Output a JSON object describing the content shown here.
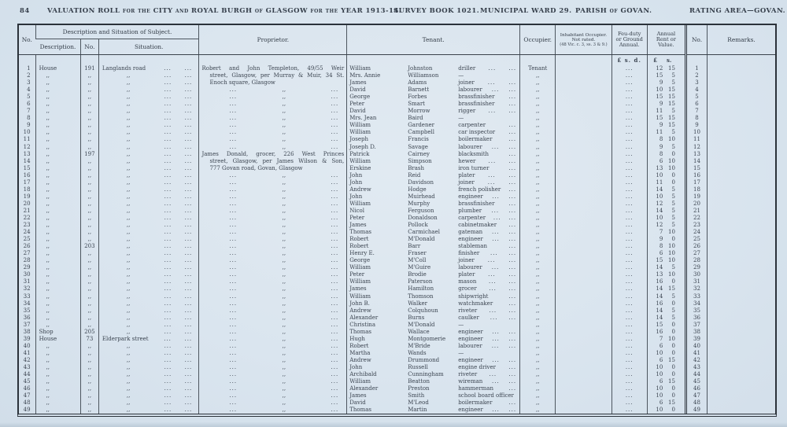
{
  "page": {
    "number": "84",
    "title": "VALUATION ROLL for the CITY and ROYAL BURGH of GLASGOW for the YEAR 1913-14.",
    "survey_book": "SURVEY BOOK 1021.",
    "municipal_ward": "MUNICIPAL WARD 29.",
    "parish": "PARISH of GOVAN.",
    "rating_area": "RATING AREA—GOVAN."
  },
  "table": {
    "leader": "...",
    "ditto": ",,",
    "columns": {
      "no": "No.",
      "desc_group": "Description and Situation of Subject.",
      "description": "Description.",
      "street_no": "No.",
      "situation": "Situation.",
      "proprietor": "Proprietor.",
      "tenant": "Tenant.",
      "occupier": "Occupier.",
      "inhabitant_lines": [
        "Inhabitant Occupier.",
        "Not rated.",
        "(48 Vic. c. 3, ss. 3 & 9.)"
      ],
      "feu_lines": [
        "Feu-duty",
        "or Ground",
        "Annual."
      ],
      "annual_lines": [
        "Annual",
        "Rent or",
        "Value."
      ],
      "no2": "No.",
      "remarks": "Remarks."
    },
    "units": {
      "feu": "£ s. d.",
      "annual_pound": "£",
      "annual_shillings": "s."
    },
    "rows": [
      {
        "no": "1",
        "desc": "House",
        "sno": "191",
        "sit": "Langlands road",
        "prop": {
          "t": "Robert and John Templeton, 49/55 Weir",
          "j": 1
        },
        "ten": [
          "William",
          "Johnston",
          "driller",
          2
        ],
        "occ": "Tenant",
        "feu": "...",
        "rent": "12 15",
        "remarks": ""
      },
      {
        "no": "2",
        "desc": ",,",
        "sno": ",,",
        "sit": ",,",
        "prop": {
          "t": "street, Glasgow, per Murray & Muir, 34 St.",
          "i": 1,
          "j": 1
        },
        "ten": [
          "Mrs. Annie",
          "Williamson",
          "—",
          0
        ],
        "occ": ",,",
        "feu": "...",
        "rent": "15 5",
        "remarks": ""
      },
      {
        "no": "3",
        "desc": ",,",
        "sno": ",,",
        "sit": ",,",
        "prop": {
          "t": "Enoch square, Glasgow",
          "i": 1
        },
        "ten": [
          "James",
          "Adams",
          "joiner",
          2
        ],
        "occ": ",,",
        "feu": "...",
        "rent": "9 5",
        "remarks": ""
      },
      {
        "no": "4",
        "desc": ",,",
        "sno": ",,",
        "sit": ",,",
        "prop": {
          "d": 1
        },
        "ten": [
          "David",
          "Barnett",
          "labourer",
          2
        ],
        "occ": ",,",
        "feu": "...",
        "rent": "10 15",
        "remarks": ""
      },
      {
        "no": "5",
        "desc": ",,",
        "sno": ",,",
        "sit": ",,",
        "prop": {
          "d": 1
        },
        "ten": [
          "George",
          "Forbes",
          "brassfinisher",
          1
        ],
        "occ": ",,",
        "feu": "...",
        "rent": "15 15",
        "remarks": ""
      },
      {
        "no": "6",
        "desc": ",,",
        "sno": ",,",
        "sit": ",,",
        "prop": {
          "d": 1
        },
        "ten": [
          "Peter",
          "Smart",
          "brassfinisher",
          1
        ],
        "occ": ",,",
        "feu": "...",
        "rent": "9 15",
        "remarks": ""
      },
      {
        "no": "7",
        "desc": ",,",
        "sno": ",,",
        "sit": ",,",
        "prop": {
          "d": 1
        },
        "ten": [
          "David",
          "Morrow",
          "rigger",
          2
        ],
        "occ": ",,",
        "feu": "...",
        "rent": "11 5",
        "remarks": ""
      },
      {
        "no": "8",
        "desc": ",,",
        "sno": ",,",
        "sit": ",,",
        "prop": {
          "d": 1
        },
        "ten": [
          "Mrs. Jean",
          "Baird",
          "—",
          0
        ],
        "occ": ",,",
        "feu": "...",
        "rent": "15 15",
        "remarks": ""
      },
      {
        "no": "9",
        "desc": ",,",
        "sno": ",,",
        "sit": ",,",
        "prop": {
          "d": 1
        },
        "ten": [
          "William",
          "Gardener",
          "carpenter",
          1
        ],
        "occ": ",,",
        "feu": "...",
        "rent": "9 15",
        "remarks": ""
      },
      {
        "no": "10",
        "desc": ",,",
        "sno": ",,",
        "sit": ",,",
        "prop": {
          "d": 1
        },
        "ten": [
          "William",
          "Campbell",
          "car inspector",
          1
        ],
        "occ": ",,",
        "feu": "...",
        "rent": "11 5",
        "remarks": ""
      },
      {
        "no": "11",
        "desc": ",,",
        "sno": ",,",
        "sit": ",,",
        "prop": {
          "d": 1
        },
        "ten": [
          "Joseph",
          "Francis",
          "boilermaker",
          1
        ],
        "occ": ",,",
        "feu": "...",
        "rent": "8 10",
        "remarks": ""
      },
      {
        "no": "12",
        "desc": ",,",
        "sno": ",,",
        "sit": ",,",
        "prop": {
          "d": 1
        },
        "ten": [
          "Joseph D.",
          "Savage",
          "labourer",
          2
        ],
        "occ": ",,",
        "feu": "...",
        "rent": "9 5",
        "remarks": ""
      },
      {
        "no": "13",
        "desc": ",,",
        "sno": "197",
        "sit": ",,",
        "prop": {
          "t": "James Donald, grocer, 226 West Princes",
          "j": 1
        },
        "ten": [
          "Patrick",
          "Cairney",
          "blacksmith",
          1
        ],
        "occ": ",,",
        "feu": "...",
        "rent": "8 0",
        "remarks": ""
      },
      {
        "no": "14",
        "desc": ",,",
        "sno": ",,",
        "sit": ",,",
        "prop": {
          "t": "street, Glasgow, per James Wilson & Son,",
          "i": 1,
          "j": 1
        },
        "ten": [
          "William",
          "Simpson",
          "hewer",
          2
        ],
        "occ": ",,",
        "feu": "...",
        "rent": "6 10",
        "remarks": ""
      },
      {
        "no": "15",
        "desc": ",,",
        "sno": ",,",
        "sit": ",,",
        "prop": {
          "t": "777 Govan road, Govan, Glasgow",
          "i": 1
        },
        "ten": [
          "Erskine",
          "Brash",
          "iron turner",
          1
        ],
        "occ": ",,",
        "feu": "...",
        "rent": "13 10",
        "remarks": ""
      },
      {
        "no": "16",
        "desc": ",,",
        "sno": ",,",
        "sit": ",,",
        "prop": {
          "d": 1
        },
        "ten": [
          "John",
          "Reid",
          "plater",
          2
        ],
        "occ": ",,",
        "feu": "...",
        "rent": "10 0",
        "remarks": ""
      },
      {
        "no": "17",
        "desc": ",,",
        "sno": ",,",
        "sit": ",,",
        "prop": {
          "d": 1
        },
        "ten": [
          "John",
          "Davidson",
          "joiner",
          2
        ],
        "occ": ",,",
        "feu": "...",
        "rent": "11 0",
        "remarks": ""
      },
      {
        "no": "18",
        "desc": ",,",
        "sno": ",,",
        "sit": ",,",
        "prop": {
          "d": 1
        },
        "ten": [
          "Andrew",
          "Hodge",
          "french polisher",
          1
        ],
        "occ": ",,",
        "feu": "...",
        "rent": "14 5",
        "remarks": ""
      },
      {
        "no": "19",
        "desc": ",,",
        "sno": ",,",
        "sit": ",,",
        "prop": {
          "d": 1
        },
        "ten": [
          "John",
          "Muirhead",
          "engineer",
          2
        ],
        "occ": ",,",
        "feu": "...",
        "rent": "10 5",
        "remarks": ""
      },
      {
        "no": "20",
        "desc": ",,",
        "sno": ",,",
        "sit": ",,",
        "prop": {
          "d": 1
        },
        "ten": [
          "William",
          "Murphy",
          "brassfinisher",
          1
        ],
        "occ": ",,",
        "feu": "...",
        "rent": "12 5",
        "remarks": ""
      },
      {
        "no": "21",
        "desc": ",,",
        "sno": ",,",
        "sit": ",,",
        "prop": {
          "d": 1
        },
        "ten": [
          "Nicol",
          "Ferguson",
          "plumber",
          2
        ],
        "occ": ",,",
        "feu": "...",
        "rent": "14 5",
        "remarks": ""
      },
      {
        "no": "22",
        "desc": ",,",
        "sno": ",,",
        "sit": ",,",
        "prop": {
          "d": 1
        },
        "ten": [
          "Peter",
          "Donaldson",
          "carpenter",
          2
        ],
        "occ": ",,",
        "feu": "...",
        "rent": "10 5",
        "remarks": ""
      },
      {
        "no": "23",
        "desc": ",,",
        "sno": ",,",
        "sit": ",,",
        "prop": {
          "d": 1
        },
        "ten": [
          "James",
          "Pollock",
          "cabinetmaker",
          1
        ],
        "occ": ",,",
        "feu": "...",
        "rent": "12 5",
        "remarks": ""
      },
      {
        "no": "24",
        "desc": ",,",
        "sno": ",,",
        "sit": ",,",
        "prop": {
          "d": 1
        },
        "ten": [
          "Thomas",
          "Carmichael",
          "gateman",
          2
        ],
        "occ": ",,",
        "feu": "...",
        "rent": "7 10",
        "remarks": ""
      },
      {
        "no": "25",
        "desc": ",,",
        "sno": ",,",
        "sit": ",,",
        "prop": {
          "d": 1
        },
        "ten": [
          "Robert",
          "M'Donald",
          "engineer",
          2
        ],
        "occ": ",,",
        "feu": "...",
        "rent": "9 0",
        "remarks": ""
      },
      {
        "no": "26",
        "desc": ",,",
        "sno": "203",
        "sit": ",,",
        "prop": {
          "d": 1
        },
        "ten": [
          "Robert",
          "Barr",
          "stableman",
          1
        ],
        "occ": ",,",
        "feu": "...",
        "rent": "8 10",
        "remarks": ""
      },
      {
        "no": "27",
        "desc": ",,",
        "sno": ",,",
        "sit": ",,",
        "prop": {
          "d": 1
        },
        "ten": [
          "Henry E.",
          "Fraser",
          "finisher",
          2
        ],
        "occ": ",,",
        "feu": "...",
        "rent": "6 10",
        "remarks": ""
      },
      {
        "no": "28",
        "desc": ",,",
        "sno": ",,",
        "sit": ",,",
        "prop": {
          "d": 1
        },
        "ten": [
          "George",
          "M'Coll",
          "joiner",
          2
        ],
        "occ": ",,",
        "feu": "...",
        "rent": "15 10",
        "remarks": ""
      },
      {
        "no": "29",
        "desc": ",,",
        "sno": ",,",
        "sit": ",,",
        "prop": {
          "d": 1
        },
        "ten": [
          "William",
          "M'Guire",
          "labourer",
          2
        ],
        "occ": ",,",
        "feu": "...",
        "rent": "14 5",
        "remarks": ""
      },
      {
        "no": "30",
        "desc": ",,",
        "sno": ",,",
        "sit": ",,",
        "prop": {
          "d": 1
        },
        "ten": [
          "Peter",
          "Brodie",
          "plater",
          2
        ],
        "occ": ",,",
        "feu": "...",
        "rent": "13 10",
        "remarks": ""
      },
      {
        "no": "31",
        "desc": ",,",
        "sno": ",,",
        "sit": ",,",
        "prop": {
          "d": 1
        },
        "ten": [
          "William",
          "Paterson",
          "mason",
          2
        ],
        "occ": ",,",
        "feu": "...",
        "rent": "16 0",
        "remarks": ""
      },
      {
        "no": "32",
        "desc": ",,",
        "sno": ",,",
        "sit": ",,",
        "prop": {
          "d": 1
        },
        "ten": [
          "James",
          "Hamilton",
          "grocer",
          2
        ],
        "occ": ",,",
        "feu": "...",
        "rent": "14 15",
        "remarks": ""
      },
      {
        "no": "33",
        "desc": ",,",
        "sno": ",,",
        "sit": ",,",
        "prop": {
          "d": 1
        },
        "ten": [
          "William",
          "Thomson",
          "shipwright",
          1
        ],
        "occ": ",,",
        "feu": "...",
        "rent": "14 5",
        "remarks": ""
      },
      {
        "no": "34",
        "desc": ",,",
        "sno": ",,",
        "sit": ",,",
        "prop": {
          "d": 1
        },
        "ten": [
          "John B.",
          "Walker",
          "watchmaker",
          1
        ],
        "occ": ",,",
        "feu": "...",
        "rent": "16 0",
        "remarks": ""
      },
      {
        "no": "35",
        "desc": ",,",
        "sno": ",,",
        "sit": ",,",
        "prop": {
          "d": 1
        },
        "ten": [
          "Andrew",
          "Colquhoun",
          "riveter",
          2
        ],
        "occ": ",,",
        "feu": "...",
        "rent": "14 5",
        "remarks": ""
      },
      {
        "no": "36",
        "desc": ",,",
        "sno": ",,",
        "sit": ",,",
        "prop": {
          "d": 1
        },
        "ten": [
          "Alexander",
          "Burns",
          "caulker",
          2
        ],
        "occ": ",,",
        "feu": "...",
        "rent": "14 5",
        "remarks": ""
      },
      {
        "no": "37",
        "desc": ",,",
        "sno": ",,",
        "sit": ",,",
        "prop": {
          "d": 1
        },
        "ten": [
          "Christina",
          "M'Donald",
          "—",
          0
        ],
        "occ": ",,",
        "feu": "...",
        "rent": "15 0",
        "remarks": ""
      },
      {
        "no": "38",
        "desc": "Shop",
        "sno": "205",
        "sit": ",,",
        "prop": {
          "d": 1
        },
        "ten": [
          "Thomas",
          "Wallace",
          "engineer",
          2
        ],
        "occ": ",,",
        "feu": "...",
        "rent": "16 0",
        "remarks": ""
      },
      {
        "no": "39",
        "desc": "House",
        "sno": "73",
        "sit": "Elderpark street",
        "prop": {
          "d": 1
        },
        "ten": [
          "Hugh",
          "Montgomerie",
          "engineer",
          2
        ],
        "occ": ",,",
        "feu": "...",
        "rent": "7 10",
        "remarks": ""
      },
      {
        "no": "40",
        "desc": ",,",
        "sno": ",,",
        "sit": ",,",
        "prop": {
          "d": 1
        },
        "ten": [
          "Robert",
          "M'Bride",
          "labourer",
          2
        ],
        "occ": ",,",
        "feu": "...",
        "rent": "6 0",
        "remarks": ""
      },
      {
        "no": "41",
        "desc": ",,",
        "sno": ",,",
        "sit": ",,",
        "prop": {
          "d": 1
        },
        "ten": [
          "Martha",
          "Wands",
          "—",
          0
        ],
        "occ": ",,",
        "feu": "...",
        "rent": "10 0",
        "remarks": ""
      },
      {
        "no": "42",
        "desc": ",,",
        "sno": ",,",
        "sit": ",,",
        "prop": {
          "d": 1
        },
        "ten": [
          "Andrew",
          "Drummond",
          "engineer",
          2
        ],
        "occ": ",,",
        "feu": "...",
        "rent": "6 15",
        "remarks": ""
      },
      {
        "no": "43",
        "desc": ",,",
        "sno": ",,",
        "sit": ",,",
        "prop": {
          "d": 1
        },
        "ten": [
          "John",
          "Russell",
          "engine driver",
          1
        ],
        "occ": ",,",
        "feu": "...",
        "rent": "10 0",
        "remarks": ""
      },
      {
        "no": "44",
        "desc": ",,",
        "sno": ",,",
        "sit": ",,",
        "prop": {
          "d": 1
        },
        "ten": [
          "Archibald",
          "Cunningham",
          "riveter",
          2
        ],
        "occ": ",,",
        "feu": "...",
        "rent": "10 0",
        "remarks": ""
      },
      {
        "no": "45",
        "desc": ",,",
        "sno": ",,",
        "sit": ",,",
        "prop": {
          "d": 1
        },
        "ten": [
          "William",
          "Beatton",
          "wireman",
          2
        ],
        "occ": ",,",
        "feu": "...",
        "rent": "6 15",
        "remarks": ""
      },
      {
        "no": "46",
        "desc": ",,",
        "sno": ",,",
        "sit": ",,",
        "prop": {
          "d": 1
        },
        "ten": [
          "Alexander",
          "Preston",
          "hammerman",
          1
        ],
        "occ": ",,",
        "feu": "...",
        "rent": "10 0",
        "remarks": ""
      },
      {
        "no": "47",
        "desc": ",,",
        "sno": ",,",
        "sit": ",,",
        "prop": {
          "d": 1
        },
        "ten": [
          "James",
          "Smith",
          "school board officer",
          0
        ],
        "occ": ",,",
        "feu": "...",
        "rent": "10 0",
        "remarks": ""
      },
      {
        "no": "48",
        "desc": ",,",
        "sno": ",,",
        "sit": ",,",
        "prop": {
          "d": 1
        },
        "ten": [
          "David",
          "M'Leod",
          "boilermaker",
          1
        ],
        "occ": ",,",
        "feu": "...",
        "rent": "6 15",
        "remarks": ""
      },
      {
        "no": "49",
        "desc": ",,",
        "sno": ",,",
        "sit": ",,",
        "prop": {
          "d": 1
        },
        "ten": [
          "Thomas",
          "Martin",
          "engineer",
          2
        ],
        "occ": ",,",
        "feu": "...",
        "rent": "10 0",
        "remarks": ""
      }
    ]
  }
}
